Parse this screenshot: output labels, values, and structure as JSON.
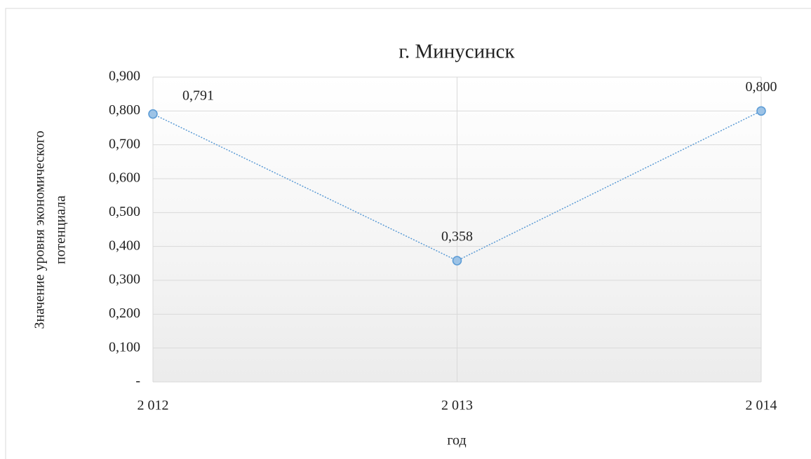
{
  "chart_data": {
    "type": "line",
    "title": "г. Минусинск",
    "x_label": "год",
    "y_label": [
      "Значение уровня экономического",
      "потенциала"
    ],
    "x": [
      2012,
      2013,
      2014
    ],
    "xlim": [
      2012,
      2014
    ],
    "xticks": [
      {
        "value": 2012,
        "label": "2 012"
      },
      {
        "value": 2013,
        "label": "2 013"
      },
      {
        "value": 2014,
        "label": "2 014"
      }
    ],
    "ylim": [
      0,
      0.9
    ],
    "yticks": [
      {
        "value": 0,
        "label": "-"
      },
      {
        "value": 0.1,
        "label": "0,100"
      },
      {
        "value": 0.2,
        "label": "0,200"
      },
      {
        "value": 0.3,
        "label": "0,300"
      },
      {
        "value": 0.4,
        "label": "0,400"
      },
      {
        "value": 0.5,
        "label": "0,500"
      },
      {
        "value": 0.6,
        "label": "0,600"
      },
      {
        "value": 0.7,
        "label": "0,700"
      },
      {
        "value": 0.8,
        "label": "0,800"
      },
      {
        "value": 0.9,
        "label": "0,900"
      }
    ],
    "grid": true,
    "series": [
      {
        "color": "#5b9bd5",
        "values": [
          0.791,
          0.358,
          0.8
        ],
        "value_labels": [
          "0,791",
          "0,358",
          "0,800"
        ]
      }
    ]
  }
}
